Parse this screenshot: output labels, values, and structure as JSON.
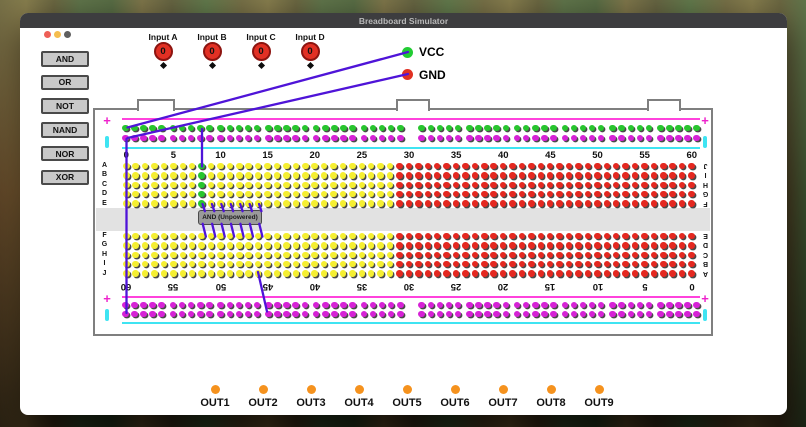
{
  "window": {
    "title": "Breadboard Simulator"
  },
  "sidebar": {
    "gates": [
      "AND",
      "OR",
      "NOT",
      "NAND",
      "NOR",
      "XOR"
    ]
  },
  "inputs": [
    {
      "label": "Input A",
      "value": "0"
    },
    {
      "label": "Input B",
      "value": "0"
    },
    {
      "label": "Input C",
      "value": "0"
    },
    {
      "label": "Input D",
      "value": "0"
    }
  ],
  "power": {
    "vcc": "VCC",
    "gnd": "GND"
  },
  "outputs": [
    "OUT1",
    "OUT2",
    "OUT3",
    "OUT4",
    "OUT5",
    "OUT6",
    "OUT7",
    "OUT8",
    "OUT9"
  ],
  "breadboard": {
    "top_numbers": [
      "0",
      "5",
      "10",
      "15",
      "20",
      "25",
      "30",
      "35",
      "40",
      "45",
      "50",
      "55",
      "60"
    ],
    "bottom_numbers": [
      "60",
      "55",
      "50",
      "45",
      "40",
      "35",
      "30",
      "25",
      "20",
      "15",
      "10",
      "5",
      "0"
    ],
    "left_rows_top": [
      "A",
      "B",
      "C",
      "D",
      "E"
    ],
    "left_rows_bottom": [
      "F",
      "G",
      "H",
      "I",
      "J"
    ],
    "right_rows_top": [
      "J",
      "I",
      "H",
      "G",
      "F"
    ],
    "right_rows_bottom": [
      "E",
      "D",
      "C",
      "B",
      "A"
    ],
    "rail_plus": "+",
    "columns": 61,
    "red_from_column": 29,
    "green_column": 8,
    "rail_groups": 12,
    "rail_group_size": 5,
    "chip": {
      "label": "AND (Unpowered)",
      "pins_per_side": 7
    },
    "colors": {
      "hole_yellow": "#f5ef32",
      "hole_red": "#e42820",
      "hole_green": "#28c52e",
      "rail_green": "#28c52e",
      "rail_magenta": "#d622d6",
      "line_pink": "#ff42dc",
      "line_cyan": "#3fe4f2",
      "wire": "#4f14d8",
      "out_dot": "#f5921e",
      "input_red": "#e23024",
      "vcc_green": "#22cc33",
      "gnd_red": "#e03022",
      "plus_magenta": "#ee22cc"
    }
  }
}
